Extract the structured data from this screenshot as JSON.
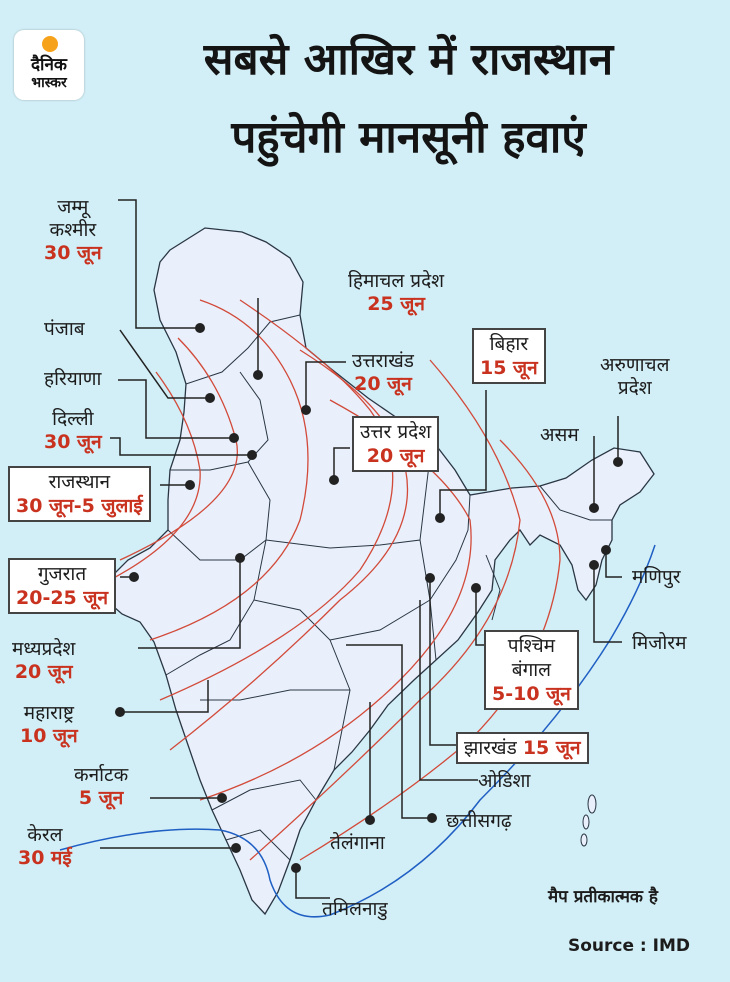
{
  "logo": {
    "line1": "दैनिक",
    "line2": "भास्कर"
  },
  "title": {
    "line1": "सबसे आखिर में राजस्थान",
    "line2": "पहुंचेगी मानसूनी हवाएं"
  },
  "regions": {
    "jk": {
      "name1": "जम्मू",
      "name2": "कश्मीर",
      "date": "30 जून"
    },
    "punjab": {
      "name": "पंजाब"
    },
    "haryana": {
      "name": "हरियाणा"
    },
    "delhi": {
      "name": "दिल्ली",
      "date": "30 जून"
    },
    "rajasthan": {
      "name": "राजस्थान",
      "date": "30 जून-5 जुलाई"
    },
    "gujarat": {
      "name": "गुजरात",
      "date": "20-25 जून"
    },
    "mp": {
      "name": "मध्यप्रदेश",
      "date": "20 जून"
    },
    "maharashtra": {
      "name": "महाराष्ट्र",
      "date": "10 जून"
    },
    "karnataka": {
      "name": "कर्नाटक",
      "date": "5 जून"
    },
    "kerala": {
      "name": "केरल",
      "date": "30 मई"
    },
    "hp": {
      "name": "हिमाचल प्रदेश",
      "date": "25 जून"
    },
    "uttarakhand": {
      "name": "उत्तराखंड",
      "date": "20 जून"
    },
    "up": {
      "name": "उत्तर प्रदेश",
      "date": "20 जून"
    },
    "bihar": {
      "name": "बिहार",
      "date": "15 जून"
    },
    "arunachal": {
      "name1": "अरुणाचल",
      "name2": "प्रदेश"
    },
    "assam": {
      "name": "असम"
    },
    "manipur": {
      "name": "मणिपुर"
    },
    "mizoram": {
      "name": "मिजोरम"
    },
    "wb": {
      "name1": "पश्चिम",
      "name2": "बंगाल",
      "date": "5-10 जून"
    },
    "jharkhand": {
      "name": "झारखंड",
      "date": "15 जून"
    },
    "odisha": {
      "name": "ओडिशा"
    },
    "chhattisgarh": {
      "name": "छत्तीसगढ़"
    },
    "telangana": {
      "name": "तेलंगाना"
    },
    "tamilnadu": {
      "name": "तमिलनाडु"
    }
  },
  "note": "मैप प्रतीकात्मक है",
  "source": "Source : IMD",
  "colors": {
    "background": "#d2eef6",
    "land": "#e9f0fb",
    "date": "#c8321f",
    "isoline": "#d24a3a",
    "monsoon_line": "#1f5fc4"
  }
}
